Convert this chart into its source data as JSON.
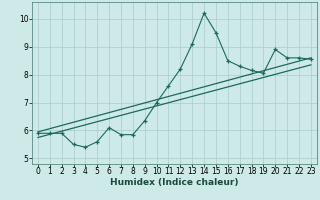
{
  "xlabel": "Humidex (Indice chaleur)",
  "background_color": "#ceeae8",
  "grid_color": "#aed0cc",
  "line_color": "#1a6a5a",
  "x_data": [
    0,
    1,
    2,
    3,
    4,
    5,
    6,
    7,
    8,
    9,
    10,
    11,
    12,
    13,
    14,
    15,
    16,
    17,
    18,
    19,
    20,
    21,
    22,
    23
  ],
  "y_main": [
    5.9,
    5.9,
    5.9,
    5.5,
    5.4,
    5.6,
    6.1,
    5.85,
    5.85,
    6.35,
    7.0,
    7.6,
    8.2,
    9.1,
    10.2,
    9.5,
    8.5,
    8.3,
    8.15,
    8.05,
    8.9,
    8.6,
    8.6,
    8.55
  ],
  "ylim": [
    4.8,
    10.6
  ],
  "xlim": [
    -0.5,
    23.5
  ],
  "yticks": [
    5,
    6,
    7,
    8,
    9,
    10
  ],
  "xticks": [
    0,
    1,
    2,
    3,
    4,
    5,
    6,
    7,
    8,
    9,
    10,
    11,
    12,
    13,
    14,
    15,
    16,
    17,
    18,
    19,
    20,
    21,
    22,
    23
  ],
  "reg_line1_x": [
    0,
    23
  ],
  "reg_line1_y": [
    5.95,
    8.6
  ],
  "reg_line2_x": [
    0,
    23
  ],
  "reg_line2_y": [
    5.75,
    8.35
  ],
  "label_fontsize": 6.5,
  "tick_fontsize": 5.5
}
